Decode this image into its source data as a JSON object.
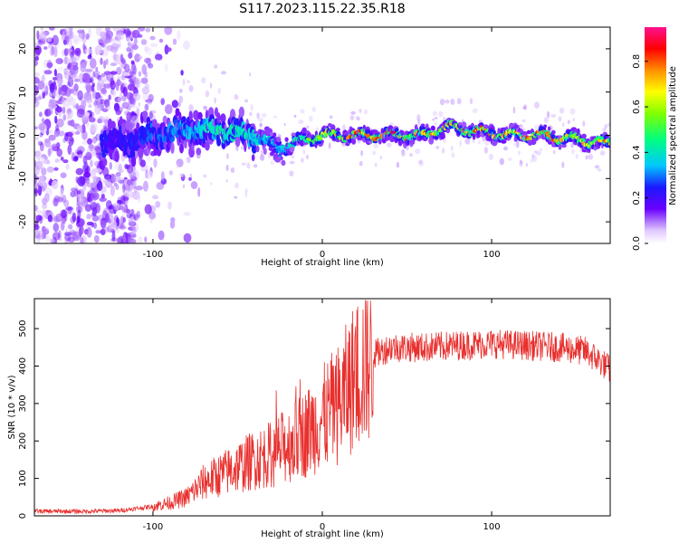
{
  "title": "S117.2023.115.22.35.R18",
  "chart_data": [
    {
      "type": "heatmap",
      "xlabel": "Height of straight line (km)",
      "ylabel": "Frequency (Hz)",
      "xlim": [
        -170,
        170
      ],
      "ylim": [
        -25,
        25
      ],
      "x_ticks": [
        -100,
        0,
        100
      ],
      "y_ticks": [
        -20,
        -10,
        0,
        10,
        20
      ],
      "colorbar": {
        "label": "Normalized spectral amplitude",
        "range": [
          0,
          0.95
        ],
        "ticks": [
          0.0,
          0.2,
          0.4,
          0.6,
          0.8
        ]
      },
      "ridge": {
        "description_points_x": [
          -125,
          -100,
          -80,
          -60,
          -40,
          -25,
          -10,
          0,
          20,
          40,
          60,
          75,
          90,
          110,
          130,
          150,
          170
        ],
        "frequency_hz": [
          -2,
          0,
          1,
          1,
          0,
          -3,
          -1,
          0,
          0,
          0,
          0,
          2,
          1,
          0,
          0,
          -1,
          -2
        ],
        "peak_amplitude": [
          0.2,
          0.3,
          0.35,
          0.45,
          0.4,
          0.35,
          0.5,
          0.65,
          0.85,
          0.9,
          0.85,
          0.7,
          0.85,
          0.8,
          0.85,
          0.75,
          0.8
        ]
      },
      "grid": false
    },
    {
      "type": "line",
      "xlabel": "Height of straight line (km)",
      "ylabel": "SNR (10 * v/v)",
      "xlim": [
        -170,
        170
      ],
      "ylim": [
        0,
        580
      ],
      "x_ticks": [
        -100,
        0,
        100
      ],
      "y_ticks": [
        0,
        100,
        200,
        300,
        400,
        500
      ],
      "color": "#e8302e",
      "envelope": {
        "x": [
          -170,
          -140,
          -120,
          -100,
          -90,
          -80,
          -70,
          -60,
          -50,
          -40,
          -30,
          -20,
          -10,
          0,
          10,
          20,
          30,
          40,
          60,
          80,
          100,
          120,
          140,
          155,
          165,
          170
        ],
        "y": [
          12,
          12,
          14,
          25,
          35,
          50,
          90,
          110,
          130,
          150,
          165,
          190,
          220,
          260,
          300,
          380,
          430,
          450,
          450,
          455,
          460,
          455,
          450,
          440,
          410,
          390
        ]
      },
      "grid": false
    }
  ]
}
